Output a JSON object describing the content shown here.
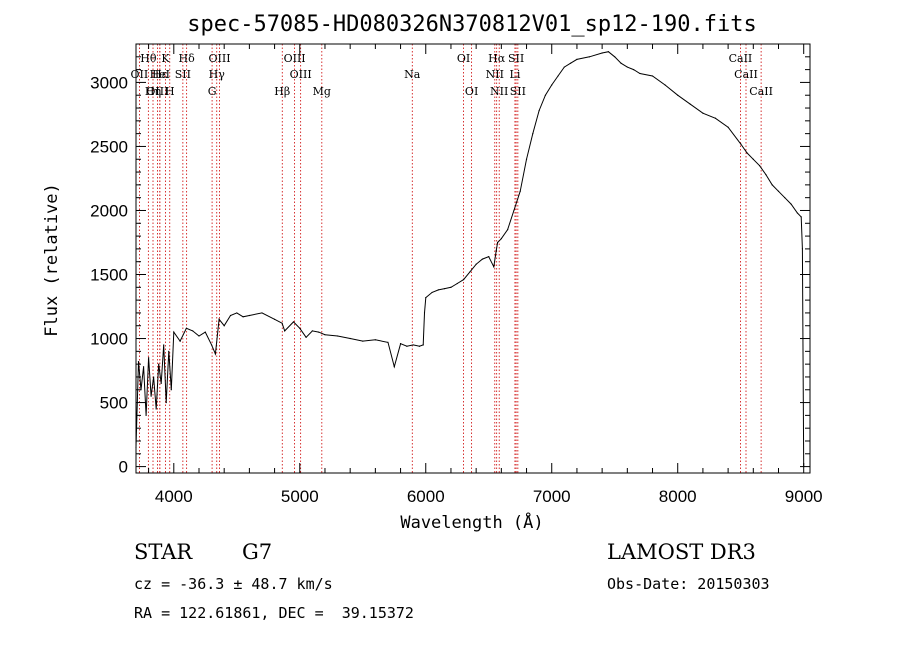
{
  "chart_data": {
    "type": "line",
    "title": "spec-57085-HD080326N370812V01_sp12-190.fits",
    "xlabel": "Wavelength (Å)",
    "ylabel": "Flux (relative)",
    "xlim": [
      3700,
      9050
    ],
    "ylim": [
      -50,
      3300
    ],
    "xticks": [
      4000,
      5000,
      6000,
      7000,
      8000,
      9000
    ],
    "yticks": [
      0,
      500,
      1000,
      1500,
      2000,
      2500,
      3000
    ],
    "series": [
      {
        "name": "spectrum",
        "x": [
          3700,
          3720,
          3740,
          3760,
          3780,
          3800,
          3820,
          3840,
          3860,
          3880,
          3900,
          3920,
          3940,
          3960,
          3980,
          4000,
          4050,
          4100,
          4150,
          4200,
          4250,
          4300,
          4330,
          4360,
          4400,
          4450,
          4500,
          4550,
          4600,
          4700,
          4800,
          4860,
          4880,
          4950,
          5000,
          5050,
          5100,
          5150,
          5200,
          5300,
          5400,
          5500,
          5600,
          5700,
          5750,
          5800,
          5850,
          5900,
          5950,
          5980,
          5990,
          6000,
          6050,
          6100,
          6150,
          6200,
          6250,
          6300,
          6350,
          6400,
          6450,
          6500,
          6540,
          6560,
          6570,
          6600,
          6650,
          6700,
          6750,
          6800,
          6850,
          6900,
          6950,
          7000,
          7050,
          7100,
          7150,
          7200,
          7300,
          7400,
          7450,
          7500,
          7550,
          7600,
          7650,
          7700,
          7800,
          7900,
          8000,
          8100,
          8200,
          8300,
          8400,
          8500,
          8550,
          8600,
          8650,
          8700,
          8750,
          8800,
          8850,
          8900,
          8950,
          8980,
          8990,
          9000
        ],
        "y": [
          150,
          820,
          600,
          780,
          400,
          850,
          550,
          700,
          450,
          800,
          650,
          950,
          500,
          900,
          600,
          1050,
          980,
          1080,
          1060,
          1020,
          1050,
          950,
          880,
          1150,
          1100,
          1180,
          1200,
          1170,
          1180,
          1200,
          1150,
          1120,
          1060,
          1130,
          1080,
          1010,
          1060,
          1050,
          1030,
          1020,
          1000,
          980,
          990,
          970,
          780,
          960,
          940,
          950,
          940,
          950,
          1200,
          1320,
          1360,
          1380,
          1390,
          1400,
          1430,
          1460,
          1520,
          1580,
          1620,
          1640,
          1560,
          1690,
          1750,
          1780,
          1850,
          2000,
          2150,
          2400,
          2600,
          2780,
          2900,
          2980,
          3050,
          3120,
          3150,
          3180,
          3200,
          3230,
          3240,
          3200,
          3150,
          3120,
          3100,
          3070,
          3050,
          2980,
          2900,
          2830,
          2760,
          2720,
          2650,
          2520,
          2450,
          2400,
          2350,
          2280,
          2200,
          2150,
          2100,
          2050,
          1980,
          1950,
          1700,
          0
        ]
      }
    ],
    "line_markers": [
      {
        "label": "Hθ",
        "x": 3798,
        "row": 1
      },
      {
        "label": "OII",
        "x": 3727,
        "row": 2
      },
      {
        "label": "OIII",
        "x": 3870,
        "row": 3
      },
      {
        "label": "Hε",
        "x": 3889,
        "row": 2
      },
      {
        "label": "K",
        "x": 3934,
        "row": 1
      },
      {
        "label": "HeI",
        "x": 3889,
        "row": 2
      },
      {
        "label": "Hη",
        "x": 3835,
        "row": 3
      },
      {
        "label": "H",
        "x": 3968,
        "row": 3
      },
      {
        "label": "Hδ",
        "x": 4102,
        "row": 1
      },
      {
        "label": "SII",
        "x": 4072,
        "row": 2
      },
      {
        "label": "OIII",
        "x": 4363,
        "row": 1
      },
      {
        "label": "Hγ",
        "x": 4341,
        "row": 2
      },
      {
        "label": "G",
        "x": 4304,
        "row": 3
      },
      {
        "label": "Hβ",
        "x": 4861,
        "row": 3
      },
      {
        "label": "OIII",
        "x": 4959,
        "row": 1
      },
      {
        "label": "OIII",
        "x": 5007,
        "row": 2
      },
      {
        "label": "Mg",
        "x": 5175,
        "row": 3
      },
      {
        "label": "Na",
        "x": 5893,
        "row": 2
      },
      {
        "label": "OI",
        "x": 6300,
        "row": 1
      },
      {
        "label": "OI",
        "x": 6364,
        "row": 3
      },
      {
        "label": "Hα",
        "x": 6563,
        "row": 1
      },
      {
        "label": "NII",
        "x": 6548,
        "row": 2
      },
      {
        "label": "NII",
        "x": 6583,
        "row": 3
      },
      {
        "label": "SII",
        "x": 6717,
        "row": 1
      },
      {
        "label": "Li",
        "x": 6708,
        "row": 2
      },
      {
        "label": "SII",
        "x": 6731,
        "row": 3
      },
      {
        "label": "CaII",
        "x": 8498,
        "row": 1
      },
      {
        "label": "CaII",
        "x": 8542,
        "row": 2
      },
      {
        "label": "CaII",
        "x": 8662,
        "row": 3
      }
    ]
  },
  "info": {
    "class": "STAR",
    "subclass": "G7",
    "survey": "LAMOST DR3",
    "cz": "cz = -36.3 ± 48.7 km/s",
    "obs_date": "Obs-Date: 20150303",
    "radec": "RA = 122.61861, DEC =  39.15372"
  },
  "style": {
    "line_color": "#000000",
    "marker_color": "#cc0000"
  }
}
